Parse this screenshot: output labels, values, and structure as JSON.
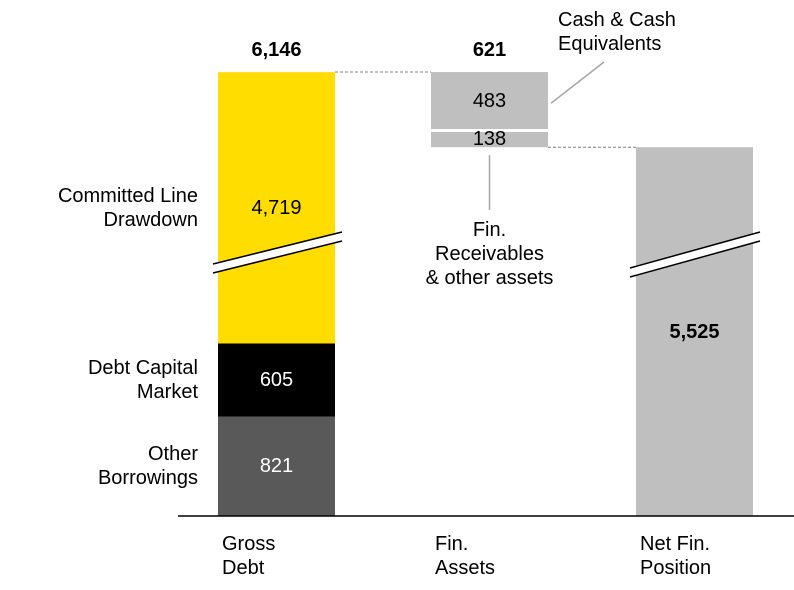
{
  "chart_data": {
    "type": "waterfall",
    "categories": [
      "Gross\nDebt",
      "Fin.\nAssets",
      "Net Fin.\nPosition"
    ],
    "totals": [
      6146,
      621,
      5525
    ],
    "total_labels": [
      "6,146",
      "621",
      "5,525"
    ],
    "total_color": "#bfbfbf",
    "series": [
      {
        "name": "Other\nBorrowings",
        "color": "#595959",
        "values": [
          821,
          null,
          null
        ],
        "value_labels": [
          "821",
          null,
          null
        ]
      },
      {
        "name": "Debt Capital\nMarket",
        "color": "#000000",
        "values": [
          605,
          null,
          null
        ],
        "value_labels": [
          "605",
          null,
          null
        ]
      },
      {
        "name": "Committed Line\nDrawdown",
        "color": "#ffdd00",
        "values": [
          4719,
          null,
          null
        ],
        "value_labels": [
          "4,719",
          null,
          null
        ]
      },
      {
        "name": "Cash & Cash\nEquivalents",
        "color": "#bfbfbf",
        "values": [
          null,
          483,
          null
        ],
        "value_labels": [
          null,
          "483",
          null
        ]
      },
      {
        "name": "Fin.\nReceivables\n& other assets",
        "color": "#bfbfbf",
        "values": [
          null,
          138,
          null
        ],
        "value_labels": [
          null,
          "138",
          null
        ]
      }
    ]
  }
}
